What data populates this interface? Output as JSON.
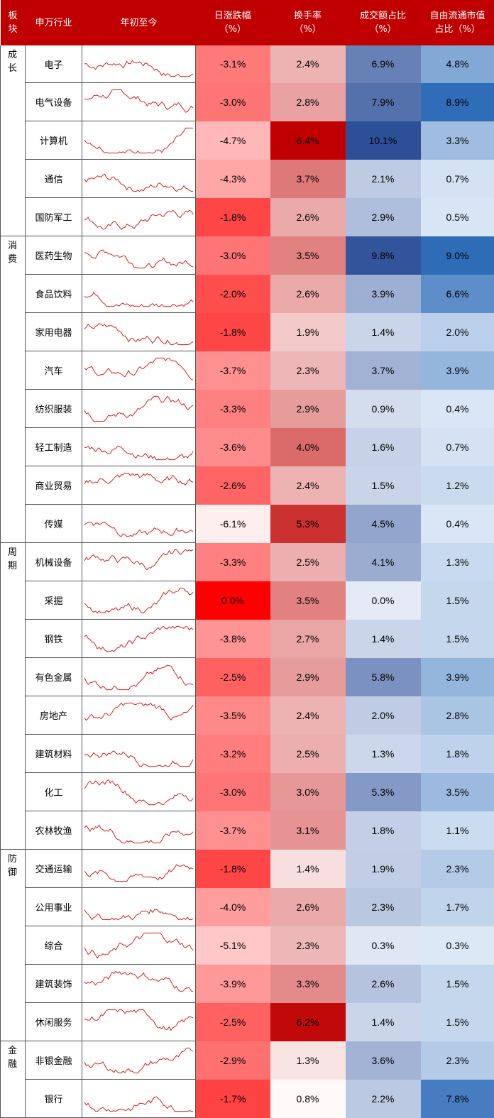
{
  "header": {
    "col_block": "板块",
    "col_industry": "申万行业",
    "col_ytd": "年初至今",
    "col_daily_change": [
      "日涨跌幅",
      "（%）"
    ],
    "col_turnover": [
      "换手率",
      "（%）"
    ],
    "col_volume_share": [
      "成交额占比",
      "（%）"
    ],
    "col_float_cap_share": [
      "自由流通市值",
      "占比（%）"
    ]
  },
  "colors": {
    "header_bg": "#c00000",
    "red_scale_low": "#ffffff",
    "red_scale_high": "#ff0000",
    "blue_scale_low": "#e4ebf7",
    "blue_scale_high": "#2d4f97",
    "sparkline": "#d82020"
  },
  "groups": [
    {
      "name": "成长",
      "rows": [
        {
          "industry": "电子",
          "change": "-3.1%",
          "turnover": "2.4%",
          "volume_share": "6.9%",
          "cap_share": "4.8%"
        },
        {
          "industry": "电气设备",
          "change": "-3.0%",
          "turnover": "2.8%",
          "volume_share": "7.9%",
          "cap_share": "8.9%"
        },
        {
          "industry": "计算机",
          "change": "-4.7%",
          "turnover": "6.4%",
          "volume_share": "10.1%",
          "cap_share": "3.3%"
        },
        {
          "industry": "通信",
          "change": "-4.3%",
          "turnover": "3.7%",
          "volume_share": "2.1%",
          "cap_share": "0.7%"
        },
        {
          "industry": "国防军工",
          "change": "-1.8%",
          "turnover": "2.6%",
          "volume_share": "2.9%",
          "cap_share": "0.5%"
        }
      ]
    },
    {
      "name": "消费",
      "rows": [
        {
          "industry": "医药生物",
          "change": "-3.0%",
          "turnover": "3.5%",
          "volume_share": "9.8%",
          "cap_share": "9.0%"
        },
        {
          "industry": "食品饮料",
          "change": "-2.0%",
          "turnover": "2.6%",
          "volume_share": "3.9%",
          "cap_share": "6.6%"
        },
        {
          "industry": "家用电器",
          "change": "-1.8%",
          "turnover": "1.9%",
          "volume_share": "1.4%",
          "cap_share": "2.0%"
        },
        {
          "industry": "汽车",
          "change": "-3.7%",
          "turnover": "2.3%",
          "volume_share": "3.7%",
          "cap_share": "3.9%"
        },
        {
          "industry": "纺织服装",
          "change": "-3.3%",
          "turnover": "2.9%",
          "volume_share": "0.9%",
          "cap_share": "0.4%"
        },
        {
          "industry": "轻工制造",
          "change": "-3.6%",
          "turnover": "4.0%",
          "volume_share": "1.6%",
          "cap_share": "0.7%"
        },
        {
          "industry": "商业贸易",
          "change": "-2.6%",
          "turnover": "2.4%",
          "volume_share": "1.5%",
          "cap_share": "1.2%"
        },
        {
          "industry": "传媒",
          "change": "-6.1%",
          "turnover": "5.3%",
          "volume_share": "4.5%",
          "cap_share": "0.4%"
        }
      ]
    },
    {
      "name": "周期",
      "rows": [
        {
          "industry": "机械设备",
          "change": "-3.3%",
          "turnover": "2.5%",
          "volume_share": "4.1%",
          "cap_share": "1.3%"
        },
        {
          "industry": "采掘",
          "change": "0.0%",
          "turnover": "3.5%",
          "volume_share": "0.0%",
          "cap_share": "1.5%"
        },
        {
          "industry": "钢铁",
          "change": "-3.8%",
          "turnover": "2.7%",
          "volume_share": "1.4%",
          "cap_share": "1.5%"
        },
        {
          "industry": "有色金属",
          "change": "-2.5%",
          "turnover": "2.9%",
          "volume_share": "5.8%",
          "cap_share": "3.9%"
        },
        {
          "industry": "房地产",
          "change": "-3.5%",
          "turnover": "2.4%",
          "volume_share": "2.0%",
          "cap_share": "2.8%"
        },
        {
          "industry": "建筑材料",
          "change": "-3.2%",
          "turnover": "2.5%",
          "volume_share": "1.3%",
          "cap_share": "1.8%"
        },
        {
          "industry": "化工",
          "change": "-3.0%",
          "turnover": "3.0%",
          "volume_share": "5.3%",
          "cap_share": "3.5%"
        },
        {
          "industry": "农林牧渔",
          "change": "-3.7%",
          "turnover": "3.1%",
          "volume_share": "1.8%",
          "cap_share": "1.1%"
        }
      ]
    },
    {
      "name": "防御",
      "rows": [
        {
          "industry": "交通运输",
          "change": "-1.8%",
          "turnover": "1.4%",
          "volume_share": "1.9%",
          "cap_share": "2.3%"
        },
        {
          "industry": "公用事业",
          "change": "-4.0%",
          "turnover": "2.6%",
          "volume_share": "2.3%",
          "cap_share": "1.7%"
        },
        {
          "industry": "综合",
          "change": "-5.1%",
          "turnover": "2.3%",
          "volume_share": "0.3%",
          "cap_share": "0.3%"
        },
        {
          "industry": "建筑装饰",
          "change": "-3.9%",
          "turnover": "3.3%",
          "volume_share": "2.6%",
          "cap_share": "1.5%"
        },
        {
          "industry": "休闲服务",
          "change": "-2.5%",
          "turnover": "6.2%",
          "volume_share": "1.4%",
          "cap_share": "1.5%"
        }
      ]
    },
    {
      "name": "金融",
      "rows": [
        {
          "industry": "非银金融",
          "change": "-2.9%",
          "turnover": "1.3%",
          "volume_share": "3.6%",
          "cap_share": "2.3%"
        },
        {
          "industry": "银行",
          "change": "-1.7%",
          "turnover": "0.8%",
          "volume_share": "2.2%",
          "cap_share": "7.8%"
        }
      ]
    }
  ]
}
